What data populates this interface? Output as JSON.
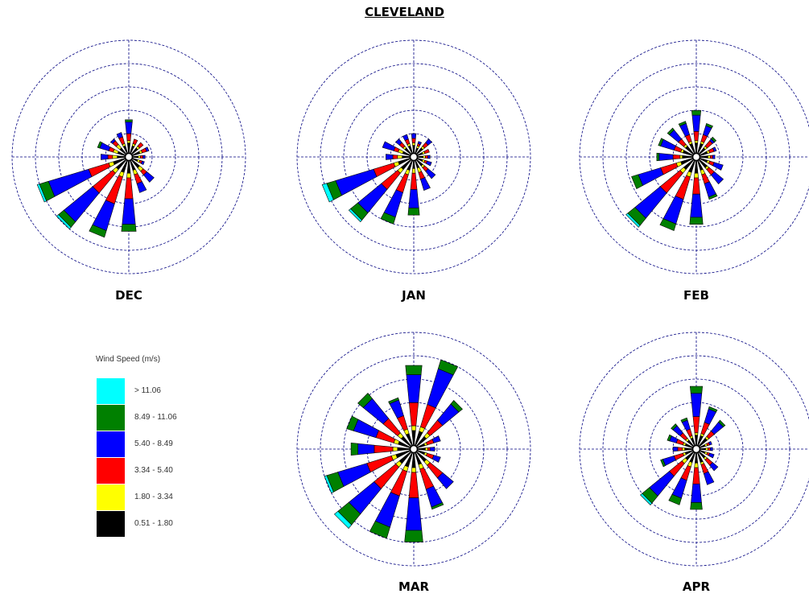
{
  "title": "CLEVELAND",
  "colors": {
    "calm": "#000000",
    "bin1": "#000000",
    "bin2": "#ffff00",
    "bin3": "#ff0000",
    "bin4": "#0000ff",
    "bin5": "#008000",
    "bin6": "#00ffff",
    "rings": "#000080",
    "outline": "#000000"
  },
  "legend": {
    "title": "Wind Speed (m/s)",
    "items": [
      {
        "label": "> 11.06",
        "color": "#00ffff"
      },
      {
        "label": "8.49 - 11.06",
        "color": "#008000"
      },
      {
        "label": "5.40 - 8.49",
        "color": "#0000ff"
      },
      {
        "label": "3.34 - 5.40",
        "color": "#ff0000"
      },
      {
        "label": "1.80 - 3.34",
        "color": "#ffff00"
      },
      {
        "label": "0.51 - 1.80",
        "color": "#000000"
      }
    ]
  },
  "chart_data": {
    "type": "windrose",
    "directions": [
      "N",
      "NNE",
      "NE",
      "ENE",
      "E",
      "ESE",
      "SE",
      "SSE",
      "S",
      "SSW",
      "SW",
      "WSW",
      "W",
      "WNW",
      "NW",
      "NNW"
    ],
    "bins": [
      "0.51 - 1.80",
      "1.80 - 3.34",
      "3.34 - 5.40",
      "5.40 - 8.49",
      "8.49 - 11.06",
      "> 11.06"
    ],
    "ring_count": 5,
    "grid": true,
    "roses": [
      {
        "month": "DEC",
        "cumulative": [
          [
            0.6,
            0.7,
            1.0,
            1.5,
            1.6,
            1.6
          ],
          [
            0.5,
            0.6,
            0.8,
            0.8,
            0.8,
            0.8
          ],
          [
            0.5,
            0.6,
            0.8,
            0.8,
            0.8,
            0.8
          ],
          [
            0.5,
            0.6,
            0.8,
            0.9,
            0.9,
            0.9
          ],
          [
            0.4,
            0.5,
            0.6,
            0.7,
            0.7,
            0.7
          ],
          [
            0.4,
            0.5,
            0.6,
            0.7,
            0.7,
            0.7
          ],
          [
            0.6,
            0.8,
            1.0,
            1.4,
            1.4,
            1.4
          ],
          [
            0.6,
            0.8,
            1.2,
            1.6,
            1.6,
            1.6
          ],
          [
            0.7,
            0.9,
            1.8,
            2.9,
            3.2,
            3.2
          ],
          [
            0.7,
            0.9,
            2.1,
            3.3,
            3.6,
            3.6
          ],
          [
            0.7,
            0.9,
            2.0,
            3.6,
            3.9,
            4.0
          ],
          [
            0.7,
            0.9,
            1.8,
            3.6,
            4.0,
            4.1
          ],
          [
            0.5,
            0.7,
            0.9,
            1.2,
            1.2,
            1.2
          ],
          [
            0.5,
            0.7,
            0.9,
            1.3,
            1.4,
            1.4
          ],
          [
            0.5,
            0.7,
            0.9,
            1.0,
            1.0,
            1.0
          ],
          [
            0.5,
            0.6,
            0.9,
            1.1,
            1.1,
            1.1
          ]
        ]
      },
      {
        "month": "JAN",
        "cumulative": [
          [
            0.5,
            0.6,
            0.8,
            1.0,
            1.0,
            1.0
          ],
          [
            0.4,
            0.5,
            0.6,
            0.7,
            0.7,
            0.7
          ],
          [
            0.5,
            0.6,
            0.8,
            1.0,
            1.0,
            1.0
          ],
          [
            0.4,
            0.5,
            0.7,
            0.7,
            0.7,
            0.7
          ],
          [
            0.4,
            0.5,
            0.6,
            0.7,
            0.7,
            0.7
          ],
          [
            0.4,
            0.5,
            0.6,
            0.8,
            0.8,
            0.8
          ],
          [
            0.5,
            0.6,
            0.8,
            1.2,
            1.2,
            1.2
          ],
          [
            0.5,
            0.7,
            1.0,
            1.5,
            1.5,
            1.5
          ],
          [
            0.5,
            0.7,
            1.4,
            2.2,
            2.5,
            2.5
          ],
          [
            0.6,
            0.8,
            1.6,
            2.7,
            3.0,
            3.0
          ],
          [
            0.7,
            0.9,
            1.8,
            3.1,
            3.5,
            3.6
          ],
          [
            0.7,
            0.9,
            1.8,
            3.5,
            3.9,
            4.1
          ],
          [
            0.5,
            0.7,
            0.9,
            1.2,
            1.2,
            1.2
          ],
          [
            0.5,
            0.7,
            0.9,
            1.4,
            1.4,
            1.4
          ],
          [
            0.5,
            0.6,
            0.8,
            1.0,
            1.0,
            1.0
          ],
          [
            0.5,
            0.6,
            0.8,
            1.0,
            1.0,
            1.0
          ]
        ]
      },
      {
        "month": "FEB",
        "cumulative": [
          [
            0.6,
            0.7,
            1.1,
            1.8,
            2.0,
            2.0
          ],
          [
            0.6,
            0.7,
            1.0,
            1.4,
            1.5,
            1.5
          ],
          [
            0.5,
            0.6,
            0.9,
            1.0,
            1.1,
            1.1
          ],
          [
            0.5,
            0.6,
            0.8,
            0.9,
            0.9,
            0.9
          ],
          [
            0.5,
            0.6,
            0.7,
            0.8,
            0.8,
            0.8
          ],
          [
            0.5,
            0.6,
            0.8,
            1.2,
            1.2,
            1.2
          ],
          [
            0.6,
            0.7,
            1.0,
            1.5,
            1.5,
            1.5
          ],
          [
            0.6,
            0.8,
            1.2,
            1.8,
            1.9,
            1.9
          ],
          [
            0.7,
            0.9,
            1.6,
            2.6,
            2.9,
            2.9
          ],
          [
            0.7,
            0.9,
            1.9,
            3.0,
            3.3,
            3.3
          ],
          [
            0.7,
            0.9,
            2.0,
            3.4,
            3.8,
            3.9
          ],
          [
            0.7,
            0.9,
            1.6,
            2.6,
            2.9,
            2.9
          ],
          [
            0.6,
            0.7,
            1.0,
            1.6,
            1.7,
            1.7
          ],
          [
            0.6,
            0.7,
            1.0,
            1.6,
            1.7,
            1.7
          ],
          [
            0.6,
            0.7,
            1.0,
            1.5,
            1.6,
            1.6
          ],
          [
            0.6,
            0.7,
            1.0,
            1.5,
            1.6,
            1.6
          ]
        ]
      },
      {
        "month": "MAR",
        "cumulative": [
          [
            0.8,
            1.0,
            2.0,
            3.2,
            3.6,
            3.6
          ],
          [
            0.8,
            1.0,
            2.0,
            3.6,
            4.0,
            4.0
          ],
          [
            0.7,
            0.9,
            1.6,
            2.5,
            2.7,
            2.7
          ],
          [
            0.5,
            0.6,
            0.9,
            1.2,
            1.2,
            1.2
          ],
          [
            0.5,
            0.6,
            0.7,
            0.9,
            0.9,
            0.9
          ],
          [
            0.5,
            0.6,
            0.9,
            1.2,
            1.2,
            1.2
          ],
          [
            0.7,
            0.9,
            1.6,
            2.2,
            2.2,
            2.2
          ],
          [
            0.7,
            0.9,
            1.8,
            2.6,
            2.7,
            2.7
          ],
          [
            0.8,
            1.0,
            2.1,
            3.5,
            4.0,
            4.0
          ],
          [
            0.8,
            1.0,
            2.1,
            3.5,
            4.0,
            4.0
          ],
          [
            0.8,
            1.0,
            2.2,
            3.6,
            4.2,
            4.4
          ],
          [
            0.8,
            1.0,
            2.1,
            3.4,
            3.9,
            4.0
          ],
          [
            0.7,
            0.9,
            1.7,
            2.4,
            2.7,
            2.7
          ],
          [
            0.7,
            0.9,
            1.7,
            2.7,
            3.0,
            3.0
          ],
          [
            0.7,
            0.9,
            1.7,
            2.8,
            3.1,
            3.1
          ],
          [
            0.7,
            0.9,
            1.5,
            2.2,
            2.3,
            2.3
          ]
        ]
      },
      {
        "month": "APR",
        "cumulative": [
          [
            0.6,
            0.7,
            1.4,
            2.4,
            2.7,
            2.7
          ],
          [
            0.6,
            0.7,
            1.2,
            1.8,
            1.9,
            1.9
          ],
          [
            0.6,
            0.7,
            1.0,
            1.5,
            1.6,
            1.6
          ],
          [
            0.4,
            0.5,
            0.6,
            0.7,
            0.7,
            0.7
          ],
          [
            0.4,
            0.5,
            0.6,
            0.7,
            0.7,
            0.7
          ],
          [
            0.4,
            0.5,
            0.6,
            0.8,
            0.8,
            0.8
          ],
          [
            0.5,
            0.6,
            0.9,
            1.2,
            1.2,
            1.2
          ],
          [
            0.6,
            0.7,
            1.1,
            1.6,
            1.6,
            1.6
          ],
          [
            0.6,
            0.8,
            1.5,
            2.3,
            2.6,
            2.6
          ],
          [
            0.6,
            0.8,
            1.4,
            2.2,
            2.5,
            2.5
          ],
          [
            0.6,
            0.8,
            1.5,
            2.6,
            3.0,
            3.1
          ],
          [
            0.5,
            0.6,
            1.0,
            1.5,
            1.6,
            1.6
          ],
          [
            0.5,
            0.6,
            0.8,
            1.0,
            1.0,
            1.0
          ],
          [
            0.5,
            0.6,
            0.9,
            1.2,
            1.3,
            1.3
          ],
          [
            0.5,
            0.6,
            0.9,
            1.3,
            1.4,
            1.4
          ],
          [
            0.5,
            0.6,
            0.9,
            1.3,
            1.4,
            1.4
          ]
        ]
      }
    ]
  }
}
